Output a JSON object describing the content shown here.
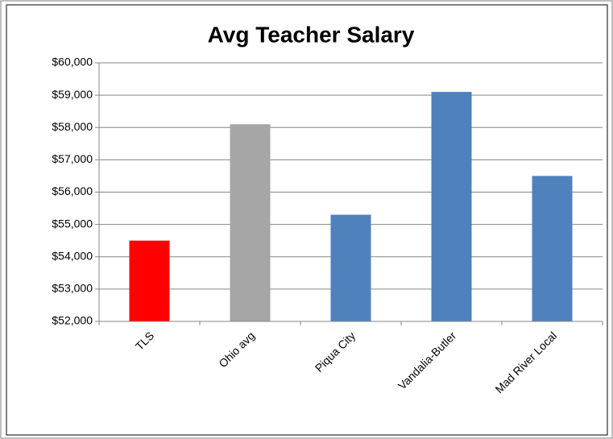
{
  "chart_data": {
    "type": "bar",
    "title": "Avg Teacher Salary",
    "categories": [
      "TLS",
      "Ohio avg",
      "Piqua City",
      "Vandalia-Butler",
      "Mad River Local"
    ],
    "values": [
      54500,
      58100,
      55300,
      59100,
      56500
    ],
    "colors": [
      "#ff0000",
      "#a6a6a6",
      "#4f81bd",
      "#4f81bd",
      "#4f81bd"
    ],
    "ylim": [
      52000,
      60000
    ],
    "yticks": [
      {
        "value": 52000,
        "label": "$52,000"
      },
      {
        "value": 53000,
        "label": "$53,000"
      },
      {
        "value": 54000,
        "label": "$54,000"
      },
      {
        "value": 55000,
        "label": "$55,000"
      },
      {
        "value": 56000,
        "label": "$56,000"
      },
      {
        "value": 57000,
        "label": "$57,000"
      },
      {
        "value": 58000,
        "label": "$58,000"
      },
      {
        "value": 59000,
        "label": "$59,000"
      },
      {
        "value": 60000,
        "label": "$60,000"
      }
    ],
    "grid": true
  }
}
